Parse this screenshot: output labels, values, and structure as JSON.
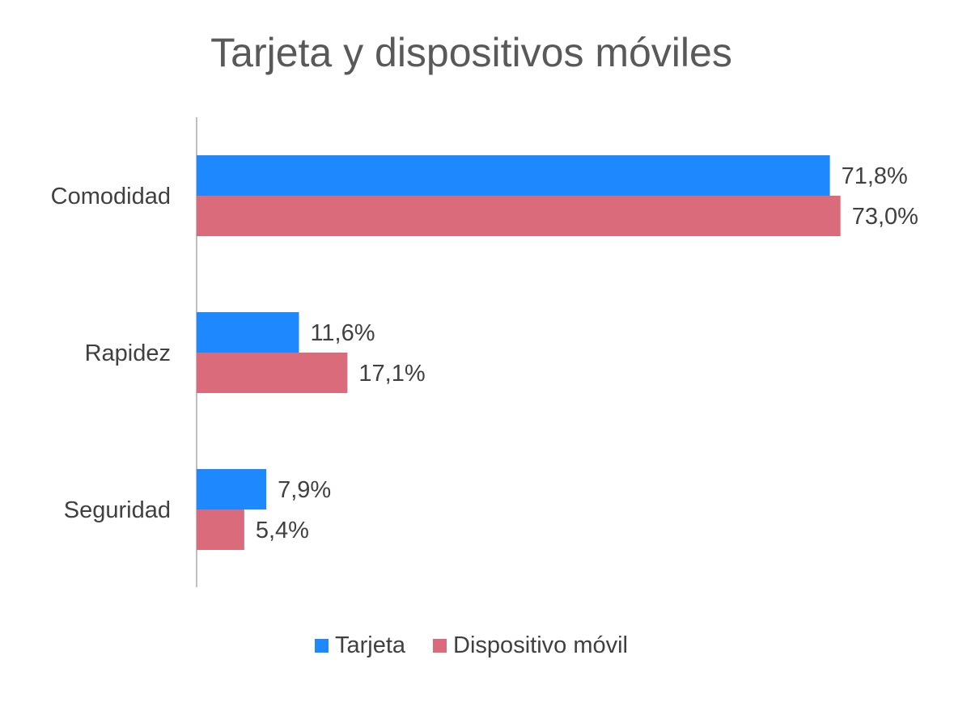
{
  "chart_data": {
    "type": "bar",
    "orientation": "horizontal",
    "title": "Tarjeta y dispositivos móviles",
    "categories": [
      "Comodidad",
      "Rapidez",
      "Seguridad"
    ],
    "series": [
      {
        "name": "Tarjeta",
        "color": "#1E88FF",
        "values": [
          71.8,
          11.6,
          7.9
        ],
        "labels": [
          "71,8%",
          "11,6%",
          "7,9%"
        ]
      },
      {
        "name": "Dispositivo móvil",
        "color": "#D96B7A",
        "values": [
          73.0,
          17.1,
          5.4
        ],
        "labels": [
          "73,0%",
          "17,1%",
          "5,4%"
        ]
      }
    ],
    "xlim": [
      0,
      100
    ],
    "grid": false,
    "legend_position": "bottom"
  }
}
